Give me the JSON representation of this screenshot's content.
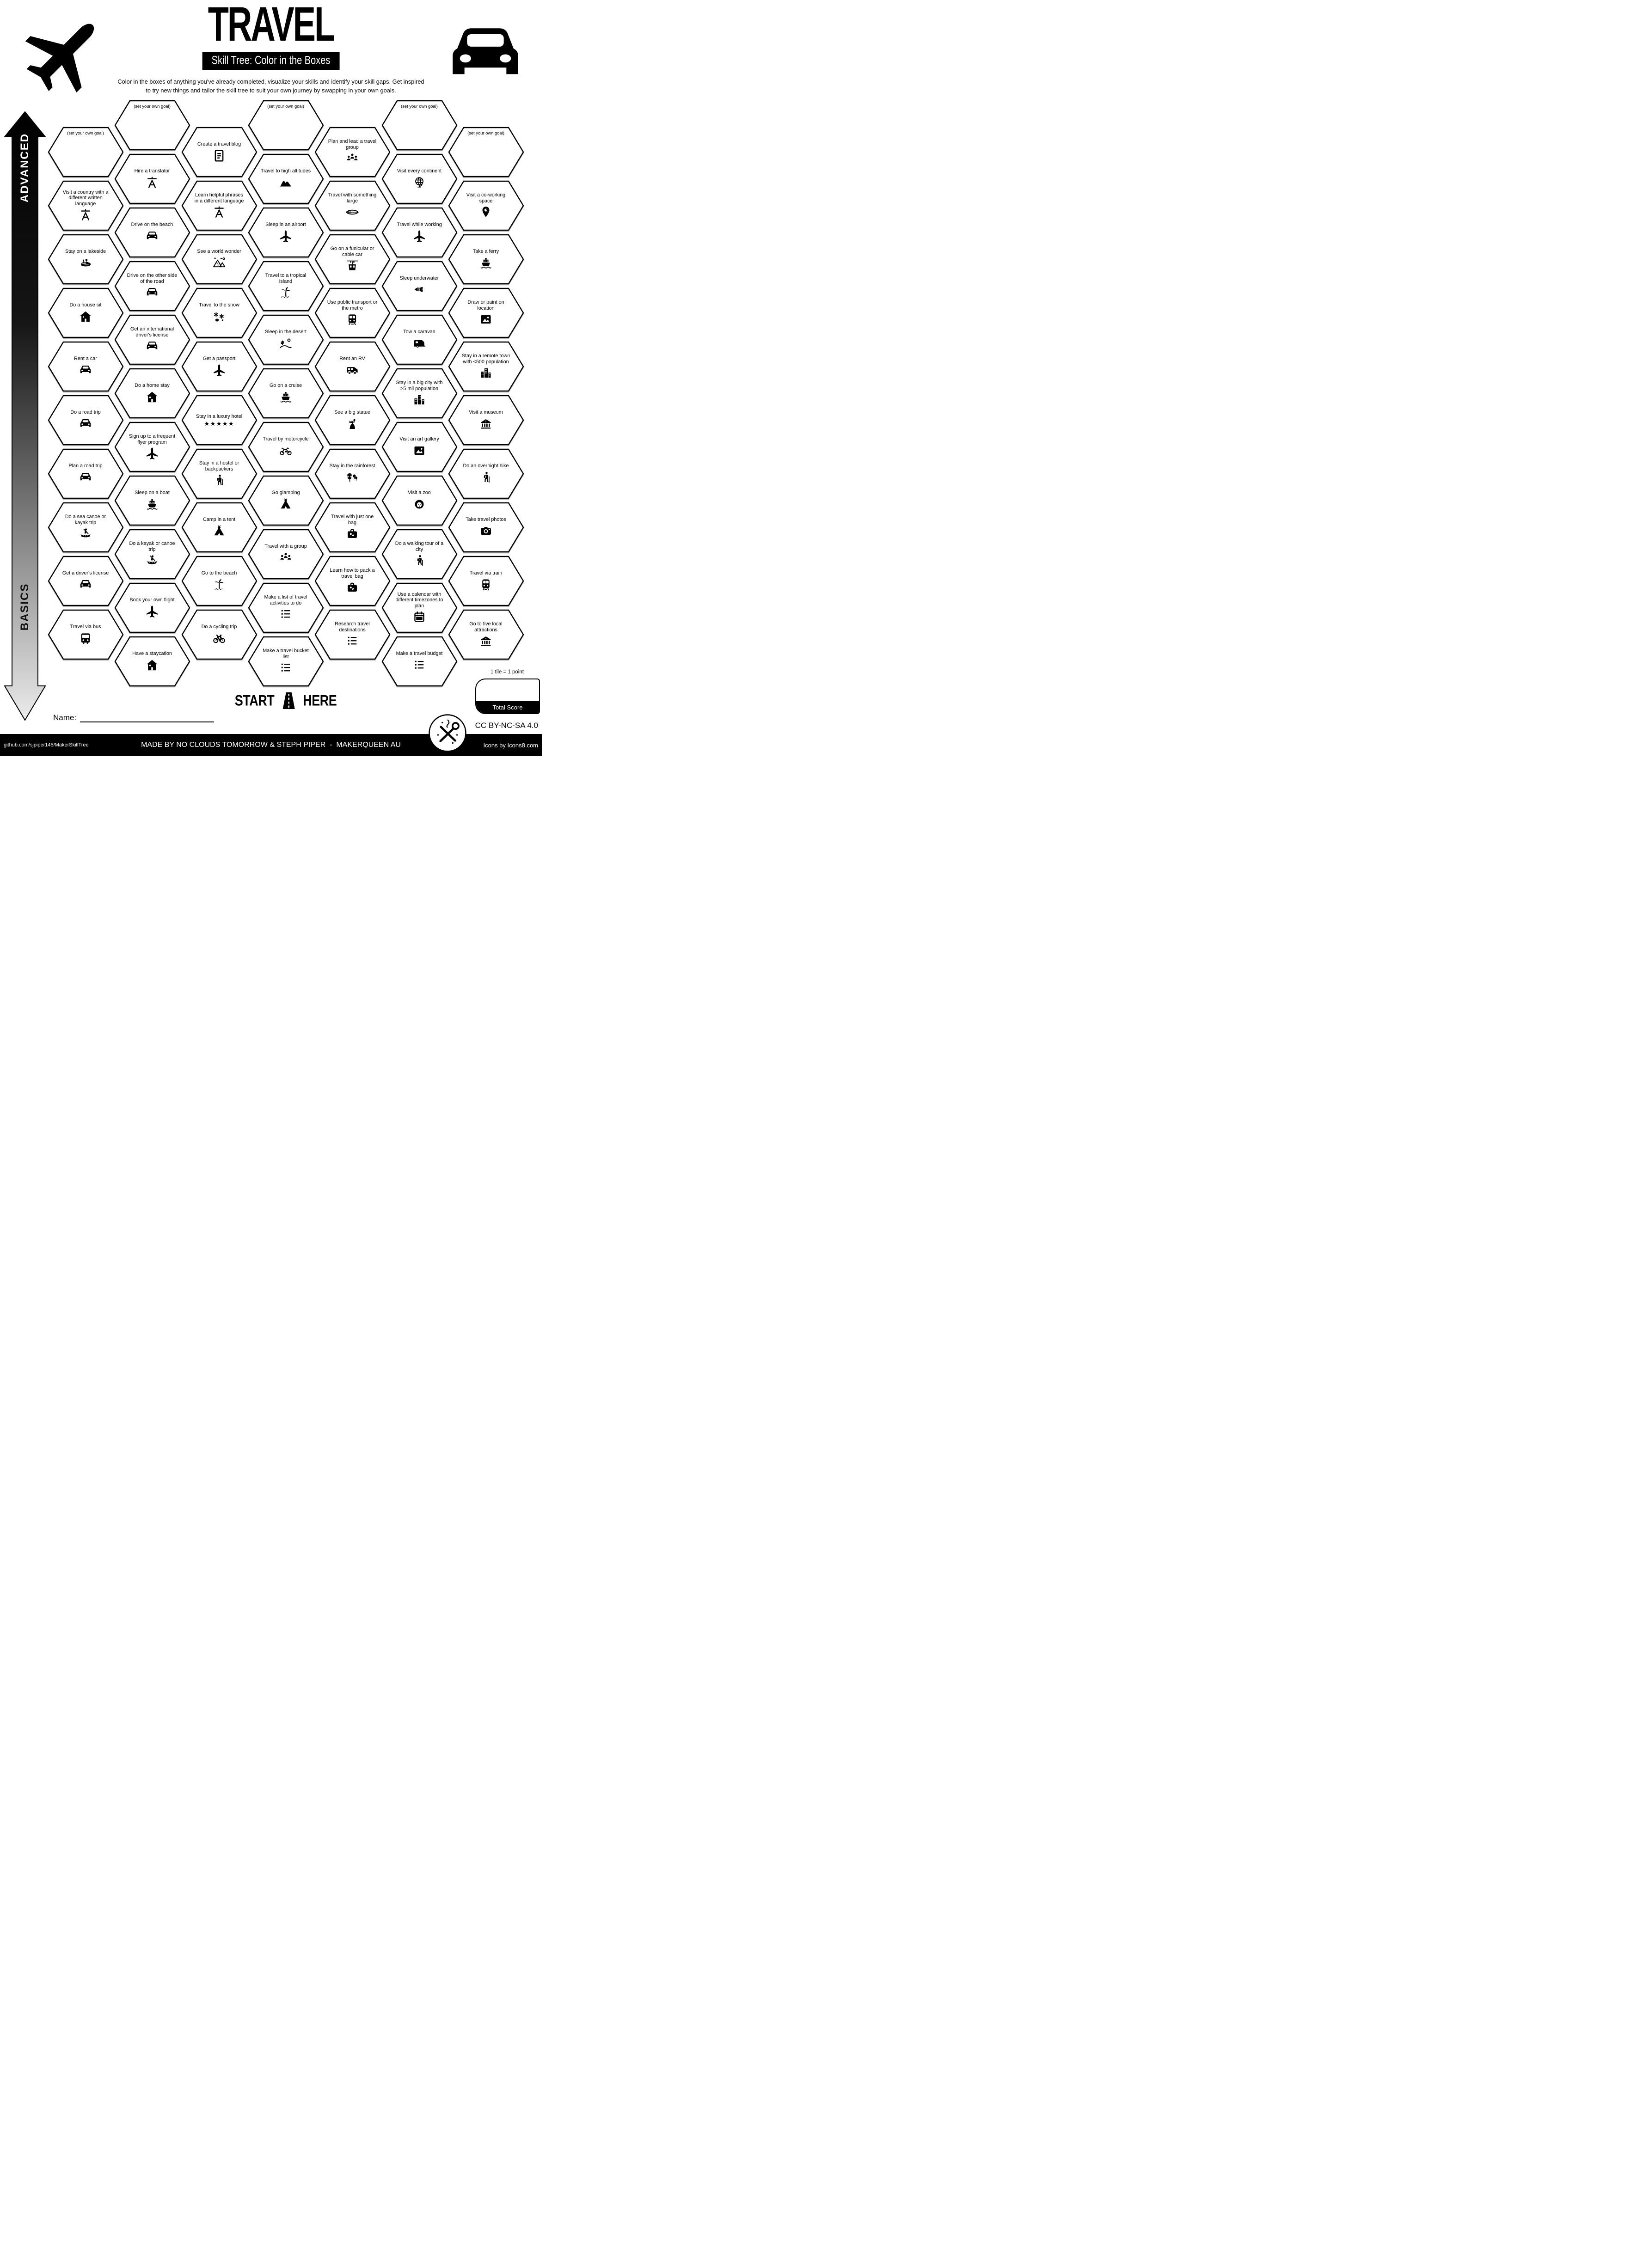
{
  "header": {
    "title": "TRAVEL",
    "subtitle": "Skill Tree: Color in the Boxes",
    "description_line1": "Color in the boxes of anything you've already completed, visualize your skills and identify your skill gaps.  Get inspired",
    "description_line2": "to try new things and tailor the skill tree to suit your own journey by swapping in your own goals."
  },
  "axis": {
    "top_label": "ADVANCED",
    "bottom_label": "BASICS"
  },
  "start": {
    "start_label": "START",
    "here_label": "HERE"
  },
  "name_field": {
    "label": "Name:"
  },
  "score": {
    "note": "1 tile = 1 point",
    "label": "Total Score"
  },
  "footer": {
    "license": "CC BY-NC-SA 4.0",
    "repo": "github.com/sjpiper145/MakerSkillTree",
    "credit": "MADE BY NO CLOUDS TOMORROW & STEPH PIPER  -  MAKERQUEEN AU",
    "icons_credit": "Icons by Icons8.com"
  },
  "colors": {
    "ink": "#000000",
    "paper": "#ffffff",
    "arrow_top": "#000000",
    "arrow_bottom": "#e8e8e8"
  },
  "hexes": [
    {
      "col": 1,
      "row": 0,
      "label": "(set your own goal)",
      "icon": "goal"
    },
    {
      "col": 1,
      "row": 1,
      "label": "Visit a country with a different written language",
      "icon": "translate"
    },
    {
      "col": 1,
      "row": 2,
      "label": "Stay on a lakeside",
      "icon": "lake"
    },
    {
      "col": 1,
      "row": 3,
      "label": "Do a house sit",
      "icon": "house"
    },
    {
      "col": 1,
      "row": 4,
      "label": "Rent a car",
      "icon": "car"
    },
    {
      "col": 1,
      "row": 5,
      "label": "Do a road trip",
      "icon": "car"
    },
    {
      "col": 1,
      "row": 6,
      "label": "Plan a road trip",
      "icon": "car"
    },
    {
      "col": 1,
      "row": 7,
      "label": "Do a sea canoe or kayak trip",
      "icon": "canoe"
    },
    {
      "col": 1,
      "row": 8,
      "label": "Get a driver's license",
      "icon": "car"
    },
    {
      "col": 1,
      "row": 9,
      "label": "Travel via bus",
      "icon": "bus"
    },
    {
      "col": 2,
      "row": 0,
      "label": "(set your own goal)",
      "icon": "goal"
    },
    {
      "col": 2,
      "row": 1,
      "label": "Hire a translator",
      "icon": "translate"
    },
    {
      "col": 2,
      "row": 2,
      "label": "Drive on the beach",
      "icon": "car"
    },
    {
      "col": 2,
      "row": 3,
      "label": "Drive on the other side of the road",
      "icon": "car"
    },
    {
      "col": 2,
      "row": 4,
      "label": "Get an international driver's license",
      "icon": "car"
    },
    {
      "col": 2,
      "row": 5,
      "label": "Do a home stay",
      "icon": "house"
    },
    {
      "col": 2,
      "row": 6,
      "label": "Sign up to a frequent flyer program",
      "icon": "plane"
    },
    {
      "col": 2,
      "row": 7,
      "label": "Sleep on a boat",
      "icon": "ship"
    },
    {
      "col": 2,
      "row": 8,
      "label": "Do a kayak or canoe trip",
      "icon": "canoe"
    },
    {
      "col": 2,
      "row": 9,
      "label": "Book your own flight",
      "icon": "plane"
    },
    {
      "col": 2,
      "row": 10,
      "label": "Have a staycation",
      "icon": "house"
    },
    {
      "col": 3,
      "row": 0,
      "label": "Create a travel blog",
      "icon": "blog"
    },
    {
      "col": 3,
      "row": 1,
      "label": "Learn helpful phrases in a different language",
      "icon": "translate"
    },
    {
      "col": 3,
      "row": 2,
      "label": "See a world wonder",
      "icon": "pyramids"
    },
    {
      "col": 3,
      "row": 3,
      "label": "Travel to the snow",
      "icon": "snow"
    },
    {
      "col": 3,
      "row": 4,
      "label": "Get a passport",
      "icon": "plane"
    },
    {
      "col": 3,
      "row": 5,
      "label": "Stay in a luxury hotel",
      "icon": "stars"
    },
    {
      "col": 3,
      "row": 6,
      "label": "Stay in a hostel or backpackers",
      "icon": "hiker"
    },
    {
      "col": 3,
      "row": 7,
      "label": "Camp in a tent",
      "icon": "tent"
    },
    {
      "col": 3,
      "row": 8,
      "label": "Go to the beach",
      "icon": "palm"
    },
    {
      "col": 3,
      "row": 9,
      "label": "Do a cycling trip",
      "icon": "bicycle"
    },
    {
      "col": 4,
      "row": 0,
      "label": "(set your own goal)",
      "icon": "goal"
    },
    {
      "col": 4,
      "row": 1,
      "label": "Travel to high altitudes",
      "icon": "mountains"
    },
    {
      "col": 4,
      "row": 2,
      "label": "Sleep in an airport",
      "icon": "plane"
    },
    {
      "col": 4,
      "row": 3,
      "label": "Travel to a tropical island",
      "icon": "palm"
    },
    {
      "col": 4,
      "row": 4,
      "label": "Sleep in the desert",
      "icon": "desert"
    },
    {
      "col": 4,
      "row": 5,
      "label": "Go on a cruise",
      "icon": "ship"
    },
    {
      "col": 4,
      "row": 6,
      "label": "Travel by motorcycle",
      "icon": "motorcycle"
    },
    {
      "col": 4,
      "row": 7,
      "label": "Go glamping",
      "icon": "tent"
    },
    {
      "col": 4,
      "row": 8,
      "label": "Travel with a group",
      "icon": "people"
    },
    {
      "col": 4,
      "row": 9,
      "label": "Make a list of travel activities to do",
      "icon": "list"
    },
    {
      "col": 4,
      "row": 10,
      "label": "Make a travel bucket list",
      "icon": "list"
    },
    {
      "col": 5,
      "row": 0,
      "label": "Plan and lead a travel group",
      "icon": "people"
    },
    {
      "col": 5,
      "row": 1,
      "label": "Travel with something large",
      "icon": "surfboard"
    },
    {
      "col": 5,
      "row": 2,
      "label": "Go on a funicular or cable car",
      "icon": "cablecar"
    },
    {
      "col": 5,
      "row": 3,
      "label": "Use public transport or the metro",
      "icon": "metro"
    },
    {
      "col": 5,
      "row": 4,
      "label": "Rent an RV",
      "icon": "rv"
    },
    {
      "col": 5,
      "row": 5,
      "label": "See a big statue",
      "icon": "statue"
    },
    {
      "col": 5,
      "row": 6,
      "label": "Stay in the rainforest",
      "icon": "rainforest"
    },
    {
      "col": 5,
      "row": 7,
      "label": "Travel with just one bag",
      "icon": "bag"
    },
    {
      "col": 5,
      "row": 8,
      "label": "Learn how to pack a travel bag",
      "icon": "bag"
    },
    {
      "col": 5,
      "row": 9,
      "label": "Research travel destinations",
      "icon": "list"
    },
    {
      "col": 6,
      "row": 0,
      "label": "(set your own goal)",
      "icon": "goal"
    },
    {
      "col": 6,
      "row": 1,
      "label": "Visit every continent",
      "icon": "globe"
    },
    {
      "col": 6,
      "row": 2,
      "label": "Travel while working",
      "icon": "plane"
    },
    {
      "col": 6,
      "row": 3,
      "label": "Sleep underwater",
      "icon": "fish"
    },
    {
      "col": 6,
      "row": 4,
      "label": "Tow a caravan",
      "icon": "caravan"
    },
    {
      "col": 6,
      "row": 5,
      "label": "Stay in a big city with >5 mil population",
      "icon": "city"
    },
    {
      "col": 6,
      "row": 6,
      "label": "Visit an art gallery",
      "icon": "picture"
    },
    {
      "col": 6,
      "row": 7,
      "label": "Visit a zoo",
      "icon": "lion"
    },
    {
      "col": 6,
      "row": 8,
      "label": "Do a walking tour of a city",
      "icon": "hiker"
    },
    {
      "col": 6,
      "row": 9,
      "label": "Use a calendar with different timezones to plan",
      "icon": "calendar"
    },
    {
      "col": 6,
      "row": 10,
      "label": "Make a travel budget",
      "icon": "list"
    },
    {
      "col": 7,
      "row": 0,
      "label": "(set your own goal)",
      "icon": "goal"
    },
    {
      "col": 7,
      "row": 1,
      "label": "Visit a co-working space",
      "icon": "pin"
    },
    {
      "col": 7,
      "row": 2,
      "label": "Take a ferry",
      "icon": "ship"
    },
    {
      "col": 7,
      "row": 3,
      "label": "Draw or paint on location",
      "icon": "picture"
    },
    {
      "col": 7,
      "row": 4,
      "label": "Stay in a remote town with <500 population",
      "icon": "city"
    },
    {
      "col": 7,
      "row": 5,
      "label": "Visit a museum",
      "icon": "museum"
    },
    {
      "col": 7,
      "row": 6,
      "label": "Do an overnight hike",
      "icon": "hiker"
    },
    {
      "col": 7,
      "row": 7,
      "label": "Take travel photos",
      "icon": "camera"
    },
    {
      "col": 7,
      "row": 8,
      "label": "Travel via train",
      "icon": "train"
    },
    {
      "col": 7,
      "row": 9,
      "label": "Go to five local attractions",
      "icon": "museum"
    }
  ]
}
